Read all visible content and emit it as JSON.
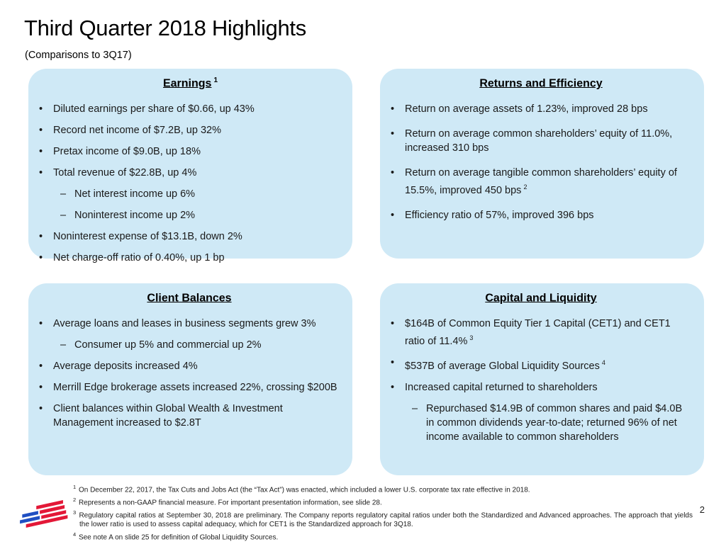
{
  "slide": {
    "title": "Third Quarter 2018 Highlights",
    "subtitle": "(Comparisons to 3Q17)",
    "page_number": "2",
    "box_background": "#cfe9f6",
    "logo": {
      "name": "bank-of-america-flag-logo",
      "red": "#e31837",
      "blue": "#1f4fc2"
    }
  },
  "boxes": [
    {
      "title": "Earnings",
      "title_sup": "1",
      "items": [
        {
          "level": 1,
          "text": "Diluted earnings per share of $0.66, up 43%"
        },
        {
          "level": 1,
          "text": "Record net income of $7.2B, up 32%"
        },
        {
          "level": 1,
          "text": "Pretax income of $9.0B, up 18%"
        },
        {
          "level": 1,
          "text": "Total revenue of $22.8B, up 4%"
        },
        {
          "level": 2,
          "text": "Net interest income up 6%"
        },
        {
          "level": 2,
          "text": "Noninterest income up 2%"
        },
        {
          "level": 1,
          "text": "Noninterest expense of $13.1B, down 2%"
        },
        {
          "level": 1,
          "text": "Net charge-off ratio of 0.40%, up 1 bp"
        }
      ]
    },
    {
      "title": "Returns and Efficiency",
      "items": [
        {
          "level": 1,
          "text": "Return on average assets of 1.23%, improved 28 bps"
        },
        {
          "level": 1,
          "text": "Return on average common shareholders’ equity of 11.0%, increased 310 bps"
        },
        {
          "level": 1,
          "text": "Return on average tangible common shareholders’ equity of 15.5%, improved 450 bps",
          "sup": "2"
        },
        {
          "level": 1,
          "text": "Efficiency ratio of 57%, improved 396 bps"
        }
      ]
    },
    {
      "title": "Client Balances",
      "items": [
        {
          "level": 1,
          "text": "Average loans and leases in business segments grew 3%"
        },
        {
          "level": 2,
          "text": "Consumer up 5% and commercial up 2%"
        },
        {
          "level": 1,
          "text": "Average deposits increased 4%"
        },
        {
          "level": 1,
          "text": "Merrill Edge brokerage assets increased 22%, crossing $200B"
        },
        {
          "level": 1,
          "text": "Client balances within Global Wealth & Investment Management increased to $2.8T"
        }
      ]
    },
    {
      "title": "Capital and Liquidity",
      "items": [
        {
          "level": 1,
          "text": "$164B of Common Equity Tier 1 Capital (CET1) and CET1 ratio of 11.4%",
          "sup": "3"
        },
        {
          "level": 1,
          "text": "$537B of average Global Liquidity Sources",
          "sup": "4"
        },
        {
          "level": 1,
          "text": "Increased capital returned to shareholders"
        },
        {
          "level": 2,
          "text": "Repurchased $14.9B of common shares and paid $4.0B in common dividends year-to-date; returned 96% of net income available to common shareholders"
        }
      ]
    }
  ],
  "footnotes": [
    {
      "sup": "1",
      "text": "On December 22, 2017, the Tax Cuts and Jobs Act (the “Tax Act”) was enacted, which included a lower U.S. corporate tax rate effective in 2018."
    },
    {
      "sup": "2",
      "text": "Represents a non-GAAP financial measure. For important presentation information, see slide 28."
    },
    {
      "sup": "3",
      "justify": true,
      "text": "Regulatory capital ratios at September 30, 2018 are preliminary. The Company reports regulatory capital ratios under both the Standardized and Advanced approaches. The approach that yields the lower ratio is used to assess capital adequacy, which for CET1 is the Standardized approach for 3Q18."
    },
    {
      "sup": "4",
      "text": "See note A on slide 25 for definition of Global Liquidity Sources."
    }
  ]
}
